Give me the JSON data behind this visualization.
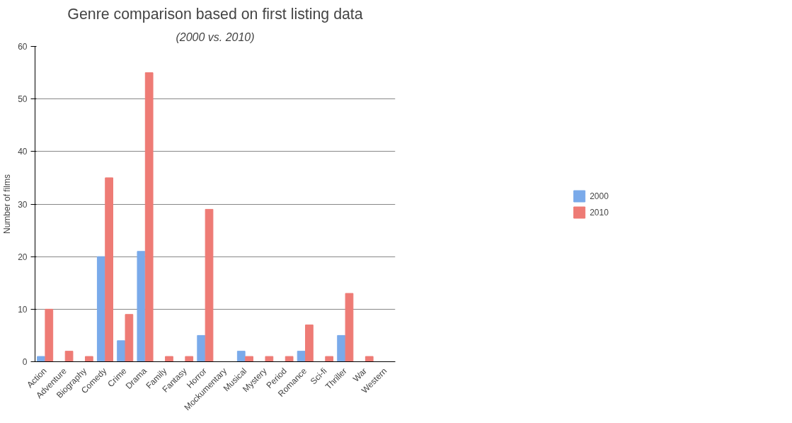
{
  "chart_data": {
    "type": "bar",
    "title": "Genre comparison based on first listing data",
    "subtitle": "(2000 vs. 2010)",
    "ylabel": "Number of films",
    "categories": [
      "Action",
      "Adventure",
      "Biography",
      "Comedy",
      "Crime",
      "Drama",
      "Family",
      "Fantasy",
      "Horror",
      "Mockumentary",
      "Musical",
      "Mystery",
      "Period",
      "Romance",
      "Sci-fi",
      "Thriller",
      "War",
      "Western"
    ],
    "series": [
      {
        "name": "2000",
        "color": "#7aaaea",
        "values": [
          1,
          0,
          0,
          20,
          4,
          21,
          0,
          0,
          5,
          0,
          2,
          0,
          0,
          2,
          0,
          5,
          0,
          0
        ]
      },
      {
        "name": "2010",
        "color": "#ee7b75",
        "values": [
          10,
          2,
          1,
          35,
          9,
          55,
          1,
          1,
          29,
          0,
          1,
          1,
          1,
          7,
          1,
          13,
          1,
          0
        ]
      }
    ],
    "ylim": [
      0,
      60
    ],
    "yticks": [
      0,
      10,
      20,
      30,
      40,
      50,
      60
    ],
    "grid": "y",
    "legend": "right"
  }
}
